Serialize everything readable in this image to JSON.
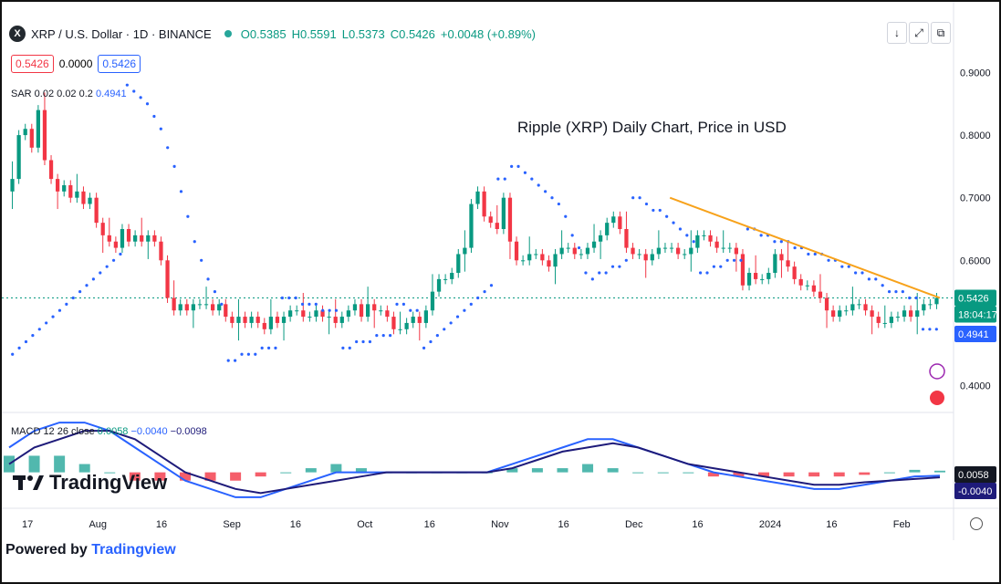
{
  "header": {
    "symbol_title": "XRP / U.S. Dollar · 1D · BINANCE",
    "open": "O0.5385",
    "high": "H0.5591",
    "low": "L0.5373",
    "close": "C0.5426",
    "change": "+0.0048 (+0.89%)",
    "logo_letter": "X"
  },
  "chips": [
    "0.5426",
    "0.0000",
    "0.5426"
  ],
  "sar_label": {
    "name": "SAR 0.02 0.02 0.2",
    "value": "0.4941"
  },
  "macd_label": {
    "name": "MACD 12 26 close",
    "v1": "0.0058",
    "v2": "−0.0040",
    "v3": "−0.0098"
  },
  "toolbar": {
    "down_icon": "↓",
    "expand_icon": "⤢",
    "circle_icon": "○",
    "copy_icon": "⧉"
  },
  "watermark": "TradingView",
  "footer": {
    "prefix": "Powered by ",
    "link": "Tradingview"
  },
  "colors": {
    "up": "#089981",
    "down": "#f23645",
    "sar": "#2962ff",
    "trendline": "#f7a21b",
    "macd_line": "#2962ff",
    "signal_line": "#1e1b7a"
  },
  "chart_data": {
    "type": "candlestick",
    "title": "Ripple (XRP) Daily Chart, Price in USD",
    "price_axis": {
      "ticks": [
        0.4,
        0.5,
        0.6,
        0.7,
        0.8,
        0.9
      ],
      "tick_labels": [
        "0.4000",
        "",
        "0.6000",
        "0.7000",
        "0.8000",
        "0.9000"
      ],
      "range": [
        0.36,
        0.94
      ]
    },
    "time_axis": {
      "labels": [
        "17",
        "Aug",
        "16",
        "Sep",
        "16",
        "Oct",
        "16",
        "Nov",
        "16",
        "Dec",
        "16",
        "2024",
        "16",
        "Feb"
      ]
    },
    "price_labels": {
      "last": "0.5426",
      "countdown": "18:04:17",
      "sar": "0.4941",
      "macd": "0.0058",
      "signal": "-0.0040"
    },
    "close_series": [
      0.73,
      0.8,
      0.81,
      0.78,
      0.84,
      0.76,
      0.73,
      0.71,
      0.72,
      0.7,
      0.71,
      0.69,
      0.7,
      0.66,
      0.64,
      0.63,
      0.62,
      0.65,
      0.63,
      0.64,
      0.63,
      0.64,
      0.63,
      0.6,
      0.54,
      0.52,
      0.53,
      0.52,
      0.53,
      0.53,
      0.53,
      0.52,
      0.53,
      0.51,
      0.5,
      0.51,
      0.5,
      0.51,
      0.5,
      0.49,
      0.51,
      0.5,
      0.51,
      0.52,
      0.52,
      0.51,
      0.51,
      0.52,
      0.51,
      0.51,
      0.5,
      0.51,
      0.52,
      0.53,
      0.51,
      0.53,
      0.52,
      0.52,
      0.51,
      0.49,
      0.49,
      0.5,
      0.51,
      0.5,
      0.52,
      0.55,
      0.57,
      0.57,
      0.58,
      0.61,
      0.62,
      0.69,
      0.71,
      0.67,
      0.66,
      0.65,
      0.7,
      0.63,
      0.6,
      0.6,
      0.61,
      0.61,
      0.6,
      0.59,
      0.61,
      0.62,
      0.62,
      0.61,
      0.61,
      0.62,
      0.63,
      0.64,
      0.66,
      0.67,
      0.65,
      0.62,
      0.61,
      0.61,
      0.6,
      0.61,
      0.62,
      0.62,
      0.62,
      0.61,
      0.61,
      0.62,
      0.64,
      0.64,
      0.63,
      0.62,
      0.62,
      0.62,
      0.61,
      0.56,
      0.58,
      0.57,
      0.57,
      0.58,
      0.61,
      0.6,
      0.59,
      0.57,
      0.56,
      0.56,
      0.55,
      0.54,
      0.52,
      0.51,
      0.52,
      0.52,
      0.53,
      0.53,
      0.52,
      0.51,
      0.5,
      0.5,
      0.51,
      0.51,
      0.52,
      0.51,
      0.52,
      0.53,
      0.53,
      0.54
    ],
    "sar_series": [
      0.45,
      0.46,
      0.47,
      0.48,
      0.49,
      0.5,
      0.51,
      0.52,
      0.53,
      0.54,
      0.55,
      0.56,
      0.57,
      0.58,
      0.59,
      0.6,
      0.61,
      0.88,
      0.87,
      0.86,
      0.85,
      0.83,
      0.81,
      0.78,
      0.75,
      0.71,
      0.67,
      0.63,
      0.6,
      0.57,
      0.55,
      0.53,
      0.44,
      0.44,
      0.45,
      0.45,
      0.45,
      0.46,
      0.46,
      0.46,
      0.54,
      0.54,
      0.54,
      0.53,
      0.53,
      0.53,
      0.52,
      0.52,
      0.52,
      0.46,
      0.46,
      0.47,
      0.47,
      0.47,
      0.48,
      0.48,
      0.48,
      0.53,
      0.53,
      0.52,
      0.52,
      0.46,
      0.47,
      0.48,
      0.49,
      0.5,
      0.51,
      0.52,
      0.53,
      0.54,
      0.55,
      0.56,
      0.73,
      0.73,
      0.75,
      0.75,
      0.74,
      0.73,
      0.72,
      0.71,
      0.7,
      0.69,
      0.67,
      0.64,
      0.62,
      0.58,
      0.57,
      0.58,
      0.58,
      0.59,
      0.59,
      0.6,
      0.7,
      0.7,
      0.69,
      0.68,
      0.68,
      0.67,
      0.66,
      0.65,
      0.64,
      0.63,
      0.58,
      0.58,
      0.59,
      0.59,
      0.6,
      0.6,
      0.6,
      0.65,
      0.65,
      0.64,
      0.64,
      0.63,
      0.63,
      0.63,
      0.62,
      0.62,
      0.61,
      0.61,
      0.61,
      0.6,
      0.6,
      0.59,
      0.59,
      0.58,
      0.58,
      0.57,
      0.57,
      0.56,
      0.55,
      0.55,
      0.55,
      0.54,
      0.54,
      0.49,
      0.49,
      0.49
    ],
    "trendline": {
      "from": [
        0.71,
        0.7
      ],
      "to": [
        1.0,
        0.54
      ],
      "note": "x as fraction of plotted bars"
    },
    "macd_line": [
      0.03,
      0.05,
      0.06,
      0.06,
      0.05,
      0.03,
      0.01,
      -0.01,
      -0.02,
      -0.03,
      -0.03,
      -0.02,
      -0.01,
      0.0,
      0.0,
      0.0,
      0.0,
      0.0,
      0.0,
      0.0,
      0.01,
      0.02,
      0.03,
      0.04,
      0.04,
      0.03,
      0.02,
      0.01,
      0.0,
      -0.005,
      -0.01,
      -0.015,
      -0.02,
      -0.02,
      -0.015,
      -0.01,
      -0.005,
      -0.004
    ],
    "signal_line": [
      0.01,
      0.03,
      0.04,
      0.05,
      0.05,
      0.04,
      0.02,
      0.0,
      -0.01,
      -0.02,
      -0.025,
      -0.02,
      -0.015,
      -0.01,
      -0.005,
      0.0,
      0.0,
      0.0,
      0.0,
      0.0,
      0.005,
      0.015,
      0.025,
      0.03,
      0.035,
      0.03,
      0.02,
      0.01,
      0.005,
      0.0,
      -0.005,
      -0.01,
      -0.015,
      -0.015,
      -0.012,
      -0.01,
      -0.008,
      -0.006
    ]
  }
}
